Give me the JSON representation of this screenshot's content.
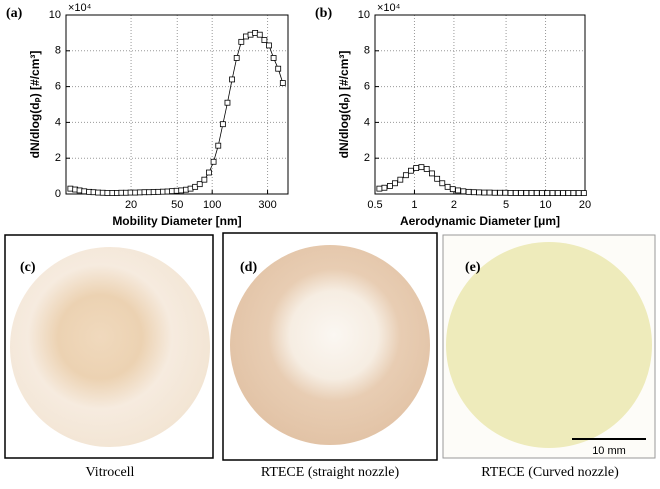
{
  "chart_data": [
    {
      "type": "line",
      "panel": "(a)",
      "xlabel": "Mobility Diameter [nm]",
      "ylabel": "dN/dlog(dₚ) [#/cm³]",
      "y_multiplier": "×10⁴",
      "xscale": "log",
      "xlim": [
        5.5,
        450
      ],
      "xticks": [
        20,
        50,
        100,
        300
      ],
      "ylim": [
        0,
        10
      ],
      "yticks": [
        0,
        2,
        4,
        6,
        8,
        10
      ],
      "grid": true,
      "color": "#000000",
      "marker": "square",
      "x": [
        6.0,
        6.6,
        7.2,
        7.9,
        8.7,
        9.5,
        10.4,
        11.4,
        12.5,
        13.8,
        15.1,
        16.5,
        18.1,
        19.8,
        21.7,
        23.8,
        26.1,
        28.6,
        31.3,
        34.3,
        37.6,
        41.2,
        45.1,
        49.4,
        54.1,
        59.4,
        65.1,
        71.3,
        78.1,
        85.6,
        93.8,
        102.8,
        112.8,
        123.6,
        135.4,
        148.4,
        162.6,
        178.2,
        195.3,
        214,
        234.5,
        257,
        281.7,
        308.6,
        338.1,
        370.5,
        406
      ],
      "values": [
        0.3,
        0.25,
        0.2,
        0.15,
        0.12,
        0.1,
        0.08,
        0.07,
        0.06,
        0.06,
        0.06,
        0.07,
        0.07,
        0.08,
        0.08,
        0.09,
        0.1,
        0.1,
        0.11,
        0.12,
        0.13,
        0.14,
        0.16,
        0.18,
        0.2,
        0.24,
        0.3,
        0.4,
        0.55,
        0.8,
        1.2,
        1.8,
        2.7,
        3.9,
        5.1,
        6.4,
        7.6,
        8.5,
        8.8,
        8.9,
        9.0,
        8.9,
        8.6,
        8.3,
        7.6,
        7.0,
        6.2
      ]
    },
    {
      "type": "line",
      "panel": "(b)",
      "xlabel": "Aerodynamic Diameter [μm]",
      "ylabel": "dN/dlog(dₚ) [#/cm³]",
      "y_multiplier": "×10⁴",
      "xscale": "log",
      "xlim": [
        0.5,
        20
      ],
      "xticks": [
        0.5,
        1,
        2,
        5,
        10,
        20
      ],
      "ylim": [
        0,
        10
      ],
      "yticks": [
        2,
        4,
        6,
        8,
        10
      ],
      "grid": true,
      "color": "#000000",
      "marker": "square",
      "x": [
        0.54,
        0.59,
        0.65,
        0.71,
        0.78,
        0.86,
        0.94,
        1.03,
        1.13,
        1.24,
        1.36,
        1.49,
        1.63,
        1.79,
        1.96,
        2.15,
        2.36,
        2.59,
        2.84,
        3.11,
        3.41,
        3.74,
        4.1,
        4.5,
        4.93,
        5.41,
        5.93,
        6.5,
        7.13,
        7.82,
        8.57,
        9.4,
        10.3,
        11.3,
        12.4,
        13.6,
        14.9,
        16.3,
        17.9,
        19.6
      ],
      "values": [
        0.3,
        0.35,
        0.45,
        0.6,
        0.8,
        1.05,
        1.3,
        1.45,
        1.5,
        1.4,
        1.15,
        0.85,
        0.6,
        0.4,
        0.27,
        0.2,
        0.15,
        0.12,
        0.1,
        0.09,
        0.08,
        0.08,
        0.07,
        0.07,
        0.07,
        0.06,
        0.06,
        0.06,
        0.06,
        0.06,
        0.06,
        0.05,
        0.05,
        0.05,
        0.05,
        0.05,
        0.05,
        0.05,
        0.05,
        0.05
      ]
    }
  ],
  "panels": [
    {
      "label": "(c)",
      "caption": "Vitrocell"
    },
    {
      "label": "(d)",
      "caption": "RTECE (straight nozzle)"
    },
    {
      "label": "(e)",
      "caption": "RTECE (Curved nozzle)",
      "scale_bar": "10 mm"
    }
  ]
}
